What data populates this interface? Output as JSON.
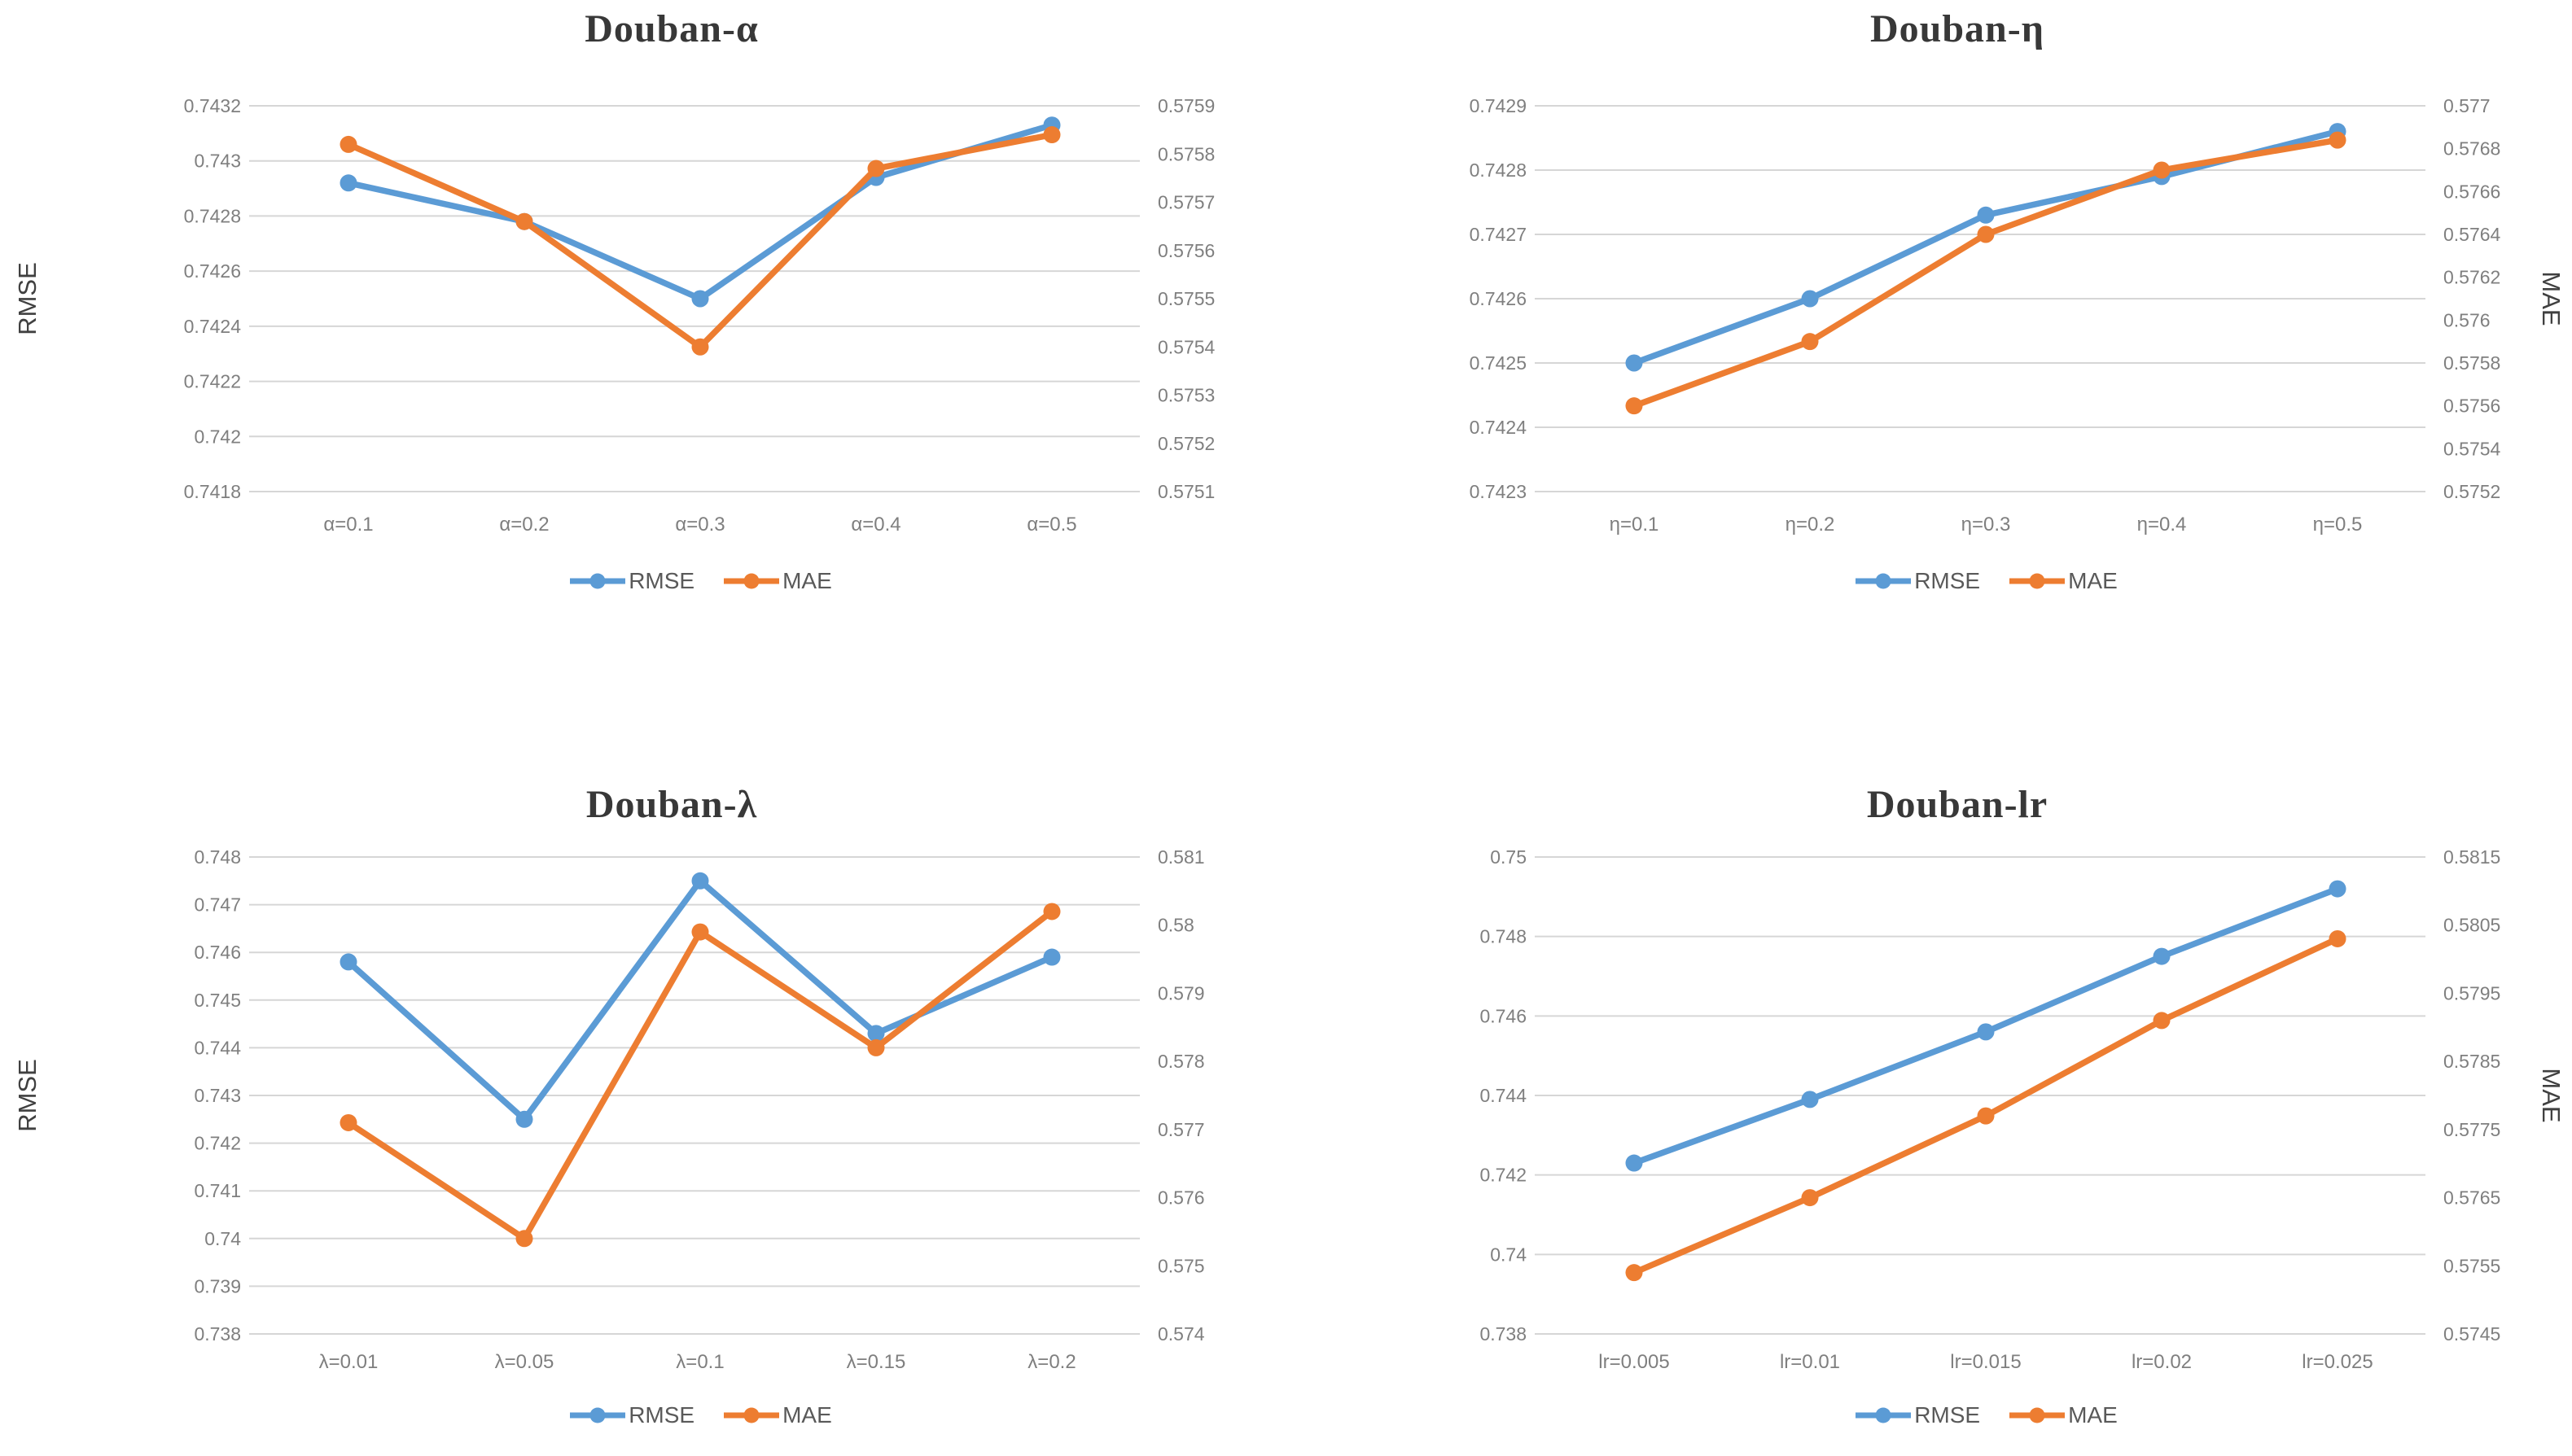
{
  "colors": {
    "rmse_series": "#5B9BD5",
    "mae_series": "#ED7D31",
    "gridline": "#D6D6D6",
    "tick_text": "#7f7f7f",
    "axis_title_text": "#404040",
    "title_text": "#383838"
  },
  "chart_data": [
    {
      "type": "line",
      "title": "Douban-α",
      "left_axis": {
        "label": "RMSE",
        "min": 0.7418,
        "max": 0.7432,
        "ticks": [
          "0.7432",
          "0.743",
          "0.7428",
          "0.7426",
          "0.7424",
          "0.7422",
          "0.742",
          "0.7418"
        ]
      },
      "right_axis": {
        "label": "",
        "min": 0.5751,
        "max": 0.5759,
        "ticks": [
          "0.5759",
          "0.5758",
          "0.5757",
          "0.5756",
          "0.5755",
          "0.5754",
          "0.5753",
          "0.5752",
          "0.5751"
        ]
      },
      "categories": [
        "α=0.1",
        "α=0.2",
        "α=0.3",
        "α=0.4",
        "α=0.5"
      ],
      "series": [
        {
          "name": "RMSE",
          "axis": "left",
          "values": [
            0.74292,
            0.74278,
            0.7425,
            0.74294,
            0.74313
          ]
        },
        {
          "name": "MAE",
          "axis": "right",
          "values": [
            0.57582,
            0.57566,
            0.5754,
            0.57577,
            0.57584
          ]
        }
      ],
      "grid": true,
      "legend_position": "bottom"
    },
    {
      "type": "line",
      "title": "Douban-η",
      "left_axis": {
        "label": "",
        "min": 0.7423,
        "max": 0.7429,
        "ticks": [
          "0.7429",
          "0.7428",
          "0.7427",
          "0.7426",
          "0.7425",
          "0.7424",
          "0.7423"
        ]
      },
      "right_axis": {
        "label": "MAE",
        "min": 0.5752,
        "max": 0.577,
        "ticks": [
          "0.577",
          "0.5768",
          "0.5766",
          "0.5764",
          "0.5762",
          "0.576",
          "0.5758",
          "0.5756",
          "0.5754",
          "0.5752"
        ]
      },
      "categories": [
        "η=0.1",
        "η=0.2",
        "η=0.3",
        "η=0.4",
        "η=0.5"
      ],
      "series": [
        {
          "name": "RMSE",
          "axis": "left",
          "values": [
            0.7425,
            0.7426,
            0.74273,
            0.74279,
            0.74286
          ]
        },
        {
          "name": "MAE",
          "axis": "right",
          "values": [
            0.5756,
            0.5759,
            0.5764,
            0.5767,
            0.57684
          ]
        }
      ],
      "grid": true,
      "legend_position": "bottom"
    },
    {
      "type": "line",
      "title": "Douban-λ",
      "left_axis": {
        "label": "RMSE",
        "min": 0.738,
        "max": 0.748,
        "ticks": [
          "0.748",
          "0.747",
          "0.746",
          "0.745",
          "0.744",
          "0.743",
          "0.742",
          "0.741",
          "0.74",
          "0.739",
          "0.738"
        ]
      },
      "right_axis": {
        "label": "",
        "min": 0.574,
        "max": 0.581,
        "ticks": [
          "0.581",
          "0.58",
          "0.579",
          "0.578",
          "0.577",
          "0.576",
          "0.575",
          "0.574"
        ]
      },
      "categories": [
        "λ=0.01",
        "λ=0.05",
        "λ=0.1",
        "λ=0.15",
        "λ=0.2"
      ],
      "series": [
        {
          "name": "RMSE",
          "axis": "left",
          "values": [
            0.7458,
            0.7425,
            0.7475,
            0.7443,
            0.7459
          ]
        },
        {
          "name": "MAE",
          "axis": "right",
          "values": [
            0.5771,
            0.5754,
            0.5799,
            0.5782,
            0.5802
          ]
        }
      ],
      "grid": true,
      "legend_position": "bottom"
    },
    {
      "type": "line",
      "title": "Douban-lr",
      "left_axis": {
        "label": "",
        "min": 0.738,
        "max": 0.75,
        "ticks": [
          "0.75",
          "0.748",
          "0.746",
          "0.744",
          "0.742",
          "0.74",
          "0.738"
        ]
      },
      "right_axis": {
        "label": "MAE",
        "min": 0.5745,
        "max": 0.5815,
        "ticks": [
          "0.5815",
          "0.5805",
          "0.5795",
          "0.5785",
          "0.5775",
          "0.5765",
          "0.5755",
          "0.5745"
        ]
      },
      "categories": [
        "lr=0.005",
        "lr=0.01",
        "lr=0.015",
        "lr=0.02",
        "lr=0.025"
      ],
      "series": [
        {
          "name": "RMSE",
          "axis": "left",
          "values": [
            0.7423,
            0.7439,
            0.7456,
            0.7475,
            0.7492
          ]
        },
        {
          "name": "MAE",
          "axis": "right",
          "values": [
            0.5754,
            0.5765,
            0.5777,
            0.5791,
            0.5803
          ]
        }
      ],
      "grid": true,
      "legend_position": "bottom"
    }
  ]
}
